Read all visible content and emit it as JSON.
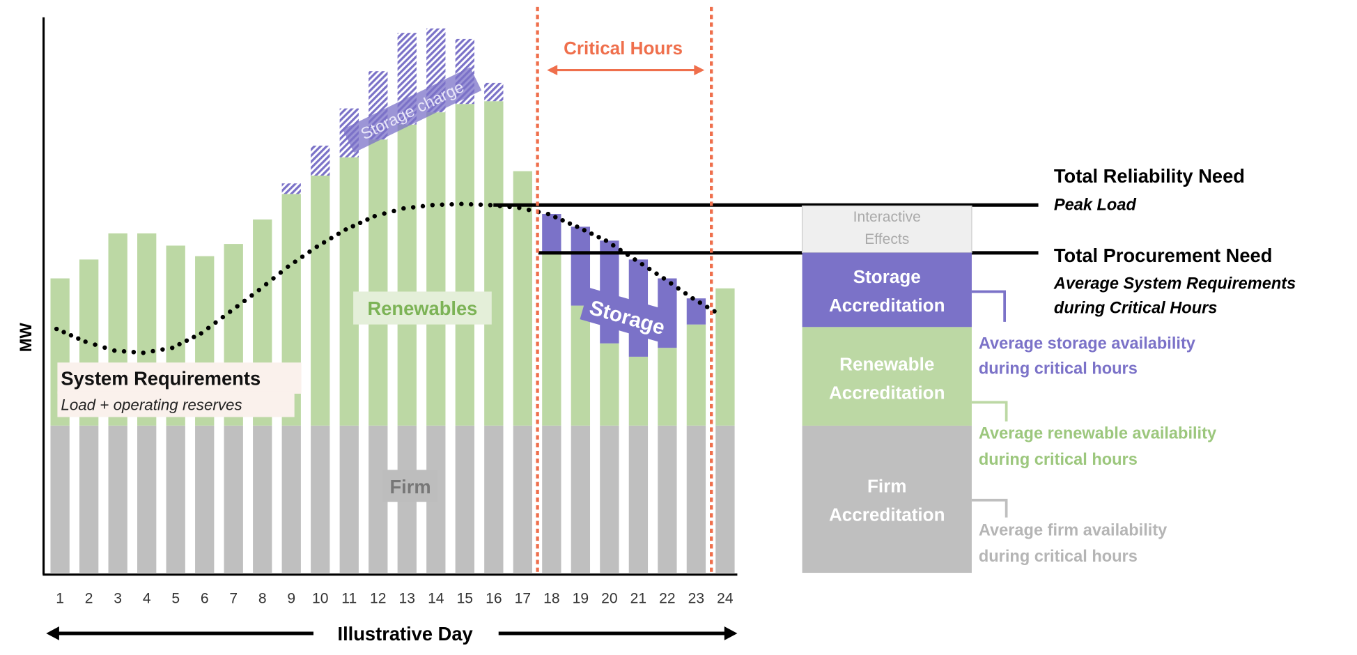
{
  "colors": {
    "firm": "#bfbfbf",
    "renewables": "#bcd8a4",
    "storage": "#7b72c8",
    "critical": "#ef6f4c",
    "interactive": "#efefef",
    "renewable_text": "#7cb356",
    "firm_text": "#aaaaaa"
  },
  "chart_data": {
    "type": "bar",
    "stacked": true,
    "ylabel": "MW",
    "xlabel": "Illustrative Day",
    "ylim": [
      0,
      100
    ],
    "grid": false,
    "categories": [
      "1",
      "2",
      "3",
      "4",
      "5",
      "6",
      "7",
      "8",
      "9",
      "10",
      "11",
      "12",
      "13",
      "14",
      "15",
      "16",
      "17",
      "18",
      "19",
      "20",
      "21",
      "22",
      "23",
      "24"
    ],
    "firm_level": 26.5,
    "renewables_top": [
      53.0,
      56.4,
      61.1,
      61.1,
      58.9,
      57.0,
      59.2,
      63.6,
      68.2,
      71.5,
      74.8,
      78.0,
      80.7,
      82.9,
      84.4,
      84.9,
      72.3,
      57.8,
      48.1,
      41.3,
      38.9,
      40.5,
      44.7,
      51.2
    ],
    "storage_charge_top": [
      null,
      null,
      null,
      null,
      null,
      null,
      null,
      null,
      70.1,
      76.9,
      83.6,
      90.3,
      97.2,
      98.0,
      96.1,
      88.2,
      null,
      null,
      null,
      null,
      null,
      null,
      null,
      null
    ],
    "storage_discharge_top": [
      null,
      null,
      null,
      null,
      null,
      null,
      null,
      null,
      null,
      null,
      null,
      null,
      null,
      null,
      null,
      null,
      null,
      64.6,
      62.3,
      59.8,
      56.4,
      53.0,
      49.4,
      null
    ],
    "system_requirements": [
      43.9,
      41.6,
      40.0,
      39.6,
      40.5,
      43.1,
      47.0,
      50.9,
      55.1,
      58.7,
      61.8,
      64.2,
      65.6,
      66.2,
      66.4,
      66.2,
      65.7,
      64.6,
      62.3,
      59.8,
      56.4,
      53.0,
      49.4,
      46.3
    ],
    "peak_load": 66.2,
    "procurement_need": 57.6,
    "critical_hours": [
      18,
      23
    ],
    "labels": {
      "critical_hours": "Critical Hours",
      "storage_charge": "Storage charge",
      "storage": "Storage",
      "renewables": "Renewables",
      "firm": "Firm",
      "system_requirements": "System Requirements",
      "system_requirements_sub": "Load + operating reserves"
    }
  },
  "accreditation": {
    "interactive_line1": "Interactive",
    "interactive_line2": "Effects",
    "storage_line1": "Storage",
    "storage_line2": "Accreditation",
    "renewable_line1": "Renewable",
    "renewable_line2": "Accreditation",
    "firm_line1": "Firm",
    "firm_line2": "Accreditation",
    "storage_note1": "Average storage availability",
    "storage_note2": "during critical hours",
    "renewable_note1": "Average renewable availability",
    "renewable_note2": "during critical hours",
    "firm_note1": "Average firm availability",
    "firm_note2": "during critical hours"
  },
  "needs": {
    "reliability_title": "Total Reliability Need",
    "reliability_sub": "Peak Load",
    "procurement_title": "Total Procurement Need",
    "procurement_sub1": "Average System Requirements",
    "procurement_sub2": "during Critical Hours"
  }
}
